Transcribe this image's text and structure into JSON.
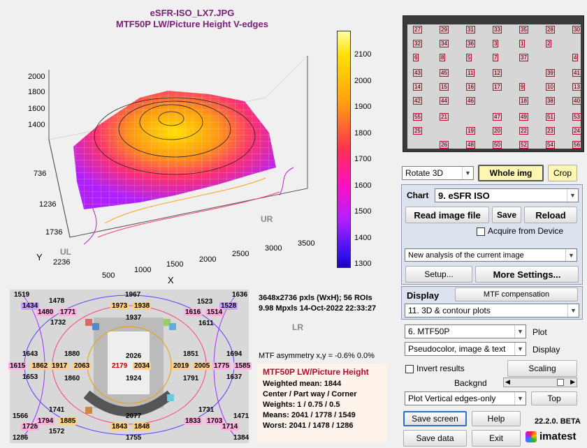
{
  "plot": {
    "title_line1": "eSFR-ISO_LX7.JPG",
    "title_line2": "MTF50P LW/Picture Height   V-edges",
    "z_ticks": [
      "2000",
      "1800",
      "1600",
      "1400"
    ],
    "y_ticks": [
      "736",
      "1236",
      "1736",
      "2236"
    ],
    "x_ticks": [
      "500",
      "1000",
      "1500",
      "2000",
      "2500",
      "3000",
      "3500"
    ],
    "y_label": "Y",
    "x_label": "X",
    "corner_ul": "UL",
    "corner_ur": "UR",
    "corner_lr": "LR",
    "colorbar_ticks": [
      "2100",
      "2000",
      "1900",
      "1800",
      "1700",
      "1600",
      "1500",
      "1400",
      "1300"
    ]
  },
  "info": {
    "line1": "3648x2736 pxls (WxH);   56 ROIs",
    "line2": "9.98 Mpxls    14-Oct-2022 22:33:27",
    "asymmetry": "MTF asymmetry x,y = -0.6%  0.0%",
    "box_title": "MTF50P LW/Picture Height",
    "weighted_mean": "Weighted mean: 1844",
    "center_part_corner": "Center / Part way / Corner",
    "weights": "Weights: 1 / 0.75 / 0.5",
    "means": "Means:      2041 / 1778 / 1549",
    "worst": "Worst:      2041 / 1478 / 1286"
  },
  "map_labels": [
    {
      "text": "1519",
      "c": "#ccc"
    },
    {
      "text": "1434",
      "c": "#c8a0ff"
    },
    {
      "text": "1478",
      "c": "#ccc"
    },
    {
      "text": "1480",
      "c": "#ffb0e0"
    },
    {
      "text": "1771",
      "c": "#ffb0e0"
    },
    {
      "text": "1967",
      "c": "#ccc"
    },
    {
      "text": "1973",
      "c": "#ffd080"
    },
    {
      "text": "1938",
      "c": "#ffd080"
    },
    {
      "text": "1523",
      "c": "#ccc"
    },
    {
      "text": "1528",
      "c": "#c8a0ff"
    },
    {
      "text": "1616",
      "c": "#ffb0e0"
    },
    {
      "text": "1514",
      "c": "#ffb0e0"
    },
    {
      "text": "1636",
      "c": "#ccc"
    },
    {
      "text": "1732",
      "c": "#ccc"
    },
    {
      "text": "1937",
      "c": "#ccc"
    },
    {
      "text": "1611",
      "c": "#ccc"
    },
    {
      "text": "1643",
      "c": "#ccc"
    },
    {
      "text": "1880",
      "c": "#ccc"
    },
    {
      "text": "2026",
      "c": "#ccc"
    },
    {
      "text": "1851",
      "c": "#ccc"
    },
    {
      "text": "1694",
      "c": "#ccc"
    },
    {
      "text": "1615",
      "c": "#ffb0e0"
    },
    {
      "text": "1862",
      "c": "#ffd080"
    },
    {
      "text": "1917",
      "c": "#ffd080"
    },
    {
      "text": "2063",
      "c": "#ffd080"
    },
    {
      "text": "2179",
      "c": "#ffd080"
    },
    {
      "text": "2034",
      "c": "#ffd080"
    },
    {
      "text": "2019",
      "c": "#ffd080"
    },
    {
      "text": "2005",
      "c": "#ffd080"
    },
    {
      "text": "1775",
      "c": "#ffb0e0"
    },
    {
      "text": "1585",
      "c": "#ffb0e0"
    },
    {
      "text": "1653",
      "c": "#ccc"
    },
    {
      "text": "1860",
      "c": "#ccc"
    },
    {
      "text": "1924",
      "c": "#ccc"
    },
    {
      "text": "1791",
      "c": "#ccc"
    },
    {
      "text": "1637",
      "c": "#ccc"
    },
    {
      "text": "1741",
      "c": "#ccc"
    },
    {
      "text": "1731",
      "c": "#ccc"
    },
    {
      "text": "1566",
      "c": "#ccc"
    },
    {
      "text": "2077",
      "c": "#ccc"
    },
    {
      "text": "1471",
      "c": "#ccc"
    },
    {
      "text": "1728",
      "c": "#ffb0e0"
    },
    {
      "text": "1794",
      "c": "#ffb0e0"
    },
    {
      "text": "1885",
      "c": "#ffd080"
    },
    {
      "text": "1843",
      "c": "#ffd080"
    },
    {
      "text": "1848",
      "c": "#ffd080"
    },
    {
      "text": "1833",
      "c": "#ffb0e0"
    },
    {
      "text": "1703",
      "c": "#ffb0e0"
    },
    {
      "text": "1714",
      "c": "#ffb0e0"
    },
    {
      "text": "1286",
      "c": "#ccc"
    },
    {
      "text": "1572",
      "c": "#ccc"
    },
    {
      "text": "1755",
      "c": "#ccc"
    },
    {
      "text": "1384",
      "c": "#ccc"
    }
  ],
  "controls": {
    "rotate3d": "Rotate 3D",
    "whole_img": "Whole img",
    "crop": "Crop",
    "chart_label": "Chart",
    "chart_value": "9. eSFR ISO",
    "read_image": "Read image file",
    "save": "Save",
    "reload": "Reload",
    "acquire": "Acquire from Device",
    "analysis": "New analysis of the current image",
    "setup": "Setup...",
    "more_settings": "More Settings...",
    "display_label": "Display",
    "mtf_comp": "MTF compensation",
    "display_value": "11. 3D & contour plots",
    "plot_value": "6.  MTF50P",
    "plot_label": "Plot",
    "display2_value": "Pseudocolor, image & text",
    "display2_label": "Display",
    "invert": "Invert results",
    "scaling": "Scaling",
    "backgnd": "Backgnd",
    "plot_edges": "Plot Vertical edges-only",
    "top": "Top",
    "save_screen": "Save screen",
    "help": "Help",
    "version": "22.2.0. BETA",
    "save_data": "Save data",
    "exit": "Exit",
    "brand": "imatest",
    "thumb_numbers": [
      "27",
      "29",
      "31",
      "33",
      "35",
      "28",
      "30",
      "32",
      "34",
      "36",
      "3",
      "1",
      "2",
      "4",
      "6",
      "8",
      "5",
      "7",
      "37",
      "39",
      "41",
      "43",
      "45",
      "11",
      "12",
      "9",
      "10",
      "13",
      "14",
      "15",
      "16",
      "17",
      "18",
      "38",
      "40",
      "42",
      "44",
      "46",
      "47",
      "49",
      "51",
      "53",
      "55",
      "21",
      "19",
      "20",
      "22",
      "23",
      "24",
      "25",
      "26",
      "48",
      "50",
      "52",
      "54",
      "56"
    ]
  }
}
